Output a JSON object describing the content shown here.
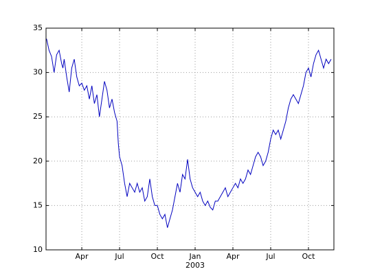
{
  "chart_data": {
    "type": "line",
    "x": [
      0.2,
      0.4,
      0.6,
      0.8,
      1.0,
      1.2,
      1.4,
      1.5,
      1.6,
      1.8,
      2.0,
      2.2,
      2.4,
      2.6,
      2.8,
      3.0,
      3.2,
      3.4,
      3.6,
      3.8,
      4.0,
      4.2,
      4.4,
      4.6,
      4.8,
      5.0,
      5.2,
      5.4,
      5.6,
      5.8,
      5.9,
      6.0,
      6.2,
      6.4,
      6.6,
      6.8,
      7.0,
      7.2,
      7.4,
      7.6,
      7.8,
      8.0,
      8.2,
      8.4,
      8.6,
      8.8,
      9.0,
      9.2,
      9.4,
      9.6,
      9.8,
      10.0,
      10.2,
      10.4,
      10.6,
      10.8,
      11.0,
      11.2,
      11.4,
      11.6,
      11.8,
      12.0,
      12.2,
      12.4,
      12.6,
      12.8,
      13.0,
      13.2,
      13.4,
      13.6,
      13.8,
      14.0,
      14.2,
      14.4,
      14.6,
      14.8,
      15.0,
      15.2,
      15.4,
      15.6,
      15.8,
      16.0,
      16.2,
      16.4,
      16.6,
      16.8,
      17.0,
      17.2,
      17.4,
      17.6,
      17.8,
      18.0,
      18.2,
      18.4,
      18.6,
      18.8,
      19.0,
      19.2,
      19.4,
      19.6,
      19.8,
      20.0,
      20.2,
      20.4,
      20.6,
      20.8,
      21.0,
      21.2,
      21.4,
      21.6,
      21.8,
      22.0,
      22.2,
      22.4,
      22.6,
      22.8
    ],
    "series": [
      {
        "color": "#0000bf",
        "values": [
          33.8,
          32.5,
          31.8,
          30.0,
          32.0,
          32.5,
          31.0,
          30.5,
          31.5,
          29.5,
          27.8,
          30.5,
          31.5,
          29.5,
          28.5,
          28.8,
          28.0,
          28.5,
          27.0,
          28.5,
          26.5,
          27.5,
          25.0,
          27.0,
          29.0,
          28.0,
          26.0,
          27.0,
          25.5,
          24.5,
          22.0,
          20.5,
          19.5,
          17.5,
          16.0,
          17.5,
          17.0,
          16.5,
          17.5,
          16.5,
          17.0,
          15.5,
          16.0,
          18.0,
          16.0,
          15.0,
          15.0,
          14.0,
          13.5,
          14.0,
          12.5,
          13.5,
          14.5,
          16.0,
          17.5,
          16.5,
          18.5,
          18.0,
          20.2,
          18.0,
          17.0,
          16.5,
          16.0,
          16.5,
          15.5,
          15.0,
          15.5,
          14.8,
          14.5,
          15.5,
          15.5,
          16.0,
          16.5,
          17.0,
          16.0,
          16.5,
          17.0,
          17.5,
          17.0,
          18.0,
          17.5,
          18.0,
          19.0,
          18.5,
          19.5,
          20.5,
          21.0,
          20.5,
          19.5,
          20.0,
          21.0,
          22.5,
          23.5,
          23.0,
          23.5,
          22.5,
          23.5,
          24.5,
          26.0,
          27.0,
          27.5,
          27.0,
          26.5,
          27.5,
          28.5,
          30.0,
          30.5,
          29.5,
          31.0,
          32.0,
          32.5,
          31.5,
          30.5,
          31.5,
          31.0,
          31.5
        ]
      }
    ],
    "xlim": [
      0.16,
      23.02
    ],
    "xticks": [
      {
        "value": 3,
        "label": "Apr"
      },
      {
        "value": 6,
        "label": "Jul"
      },
      {
        "value": 9,
        "label": "Oct"
      },
      {
        "value": 12,
        "label": "Jan"
      },
      {
        "value": 15,
        "label": "Apr"
      },
      {
        "value": 18,
        "label": "Jul"
      },
      {
        "value": 21,
        "label": "Oct"
      }
    ],
    "year_labels": [
      {
        "value": 12,
        "label": "2003"
      }
    ],
    "ylim": [
      10,
      35
    ],
    "yticks": [
      10,
      15,
      20,
      25,
      30,
      35
    ],
    "grid": true
  }
}
